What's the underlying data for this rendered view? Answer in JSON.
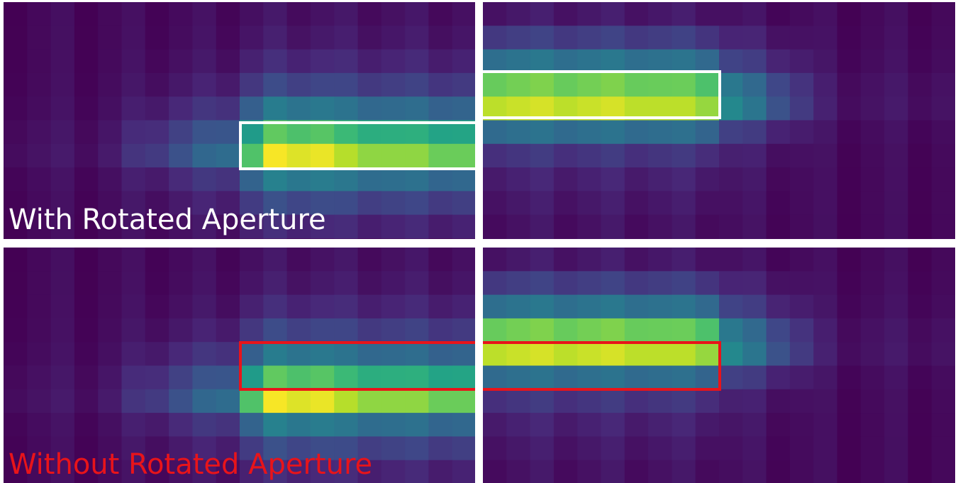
{
  "panels": [
    {
      "label": "With Rotated Aperture"
    },
    {
      "label": "Without Rotated Aperture"
    }
  ]
}
